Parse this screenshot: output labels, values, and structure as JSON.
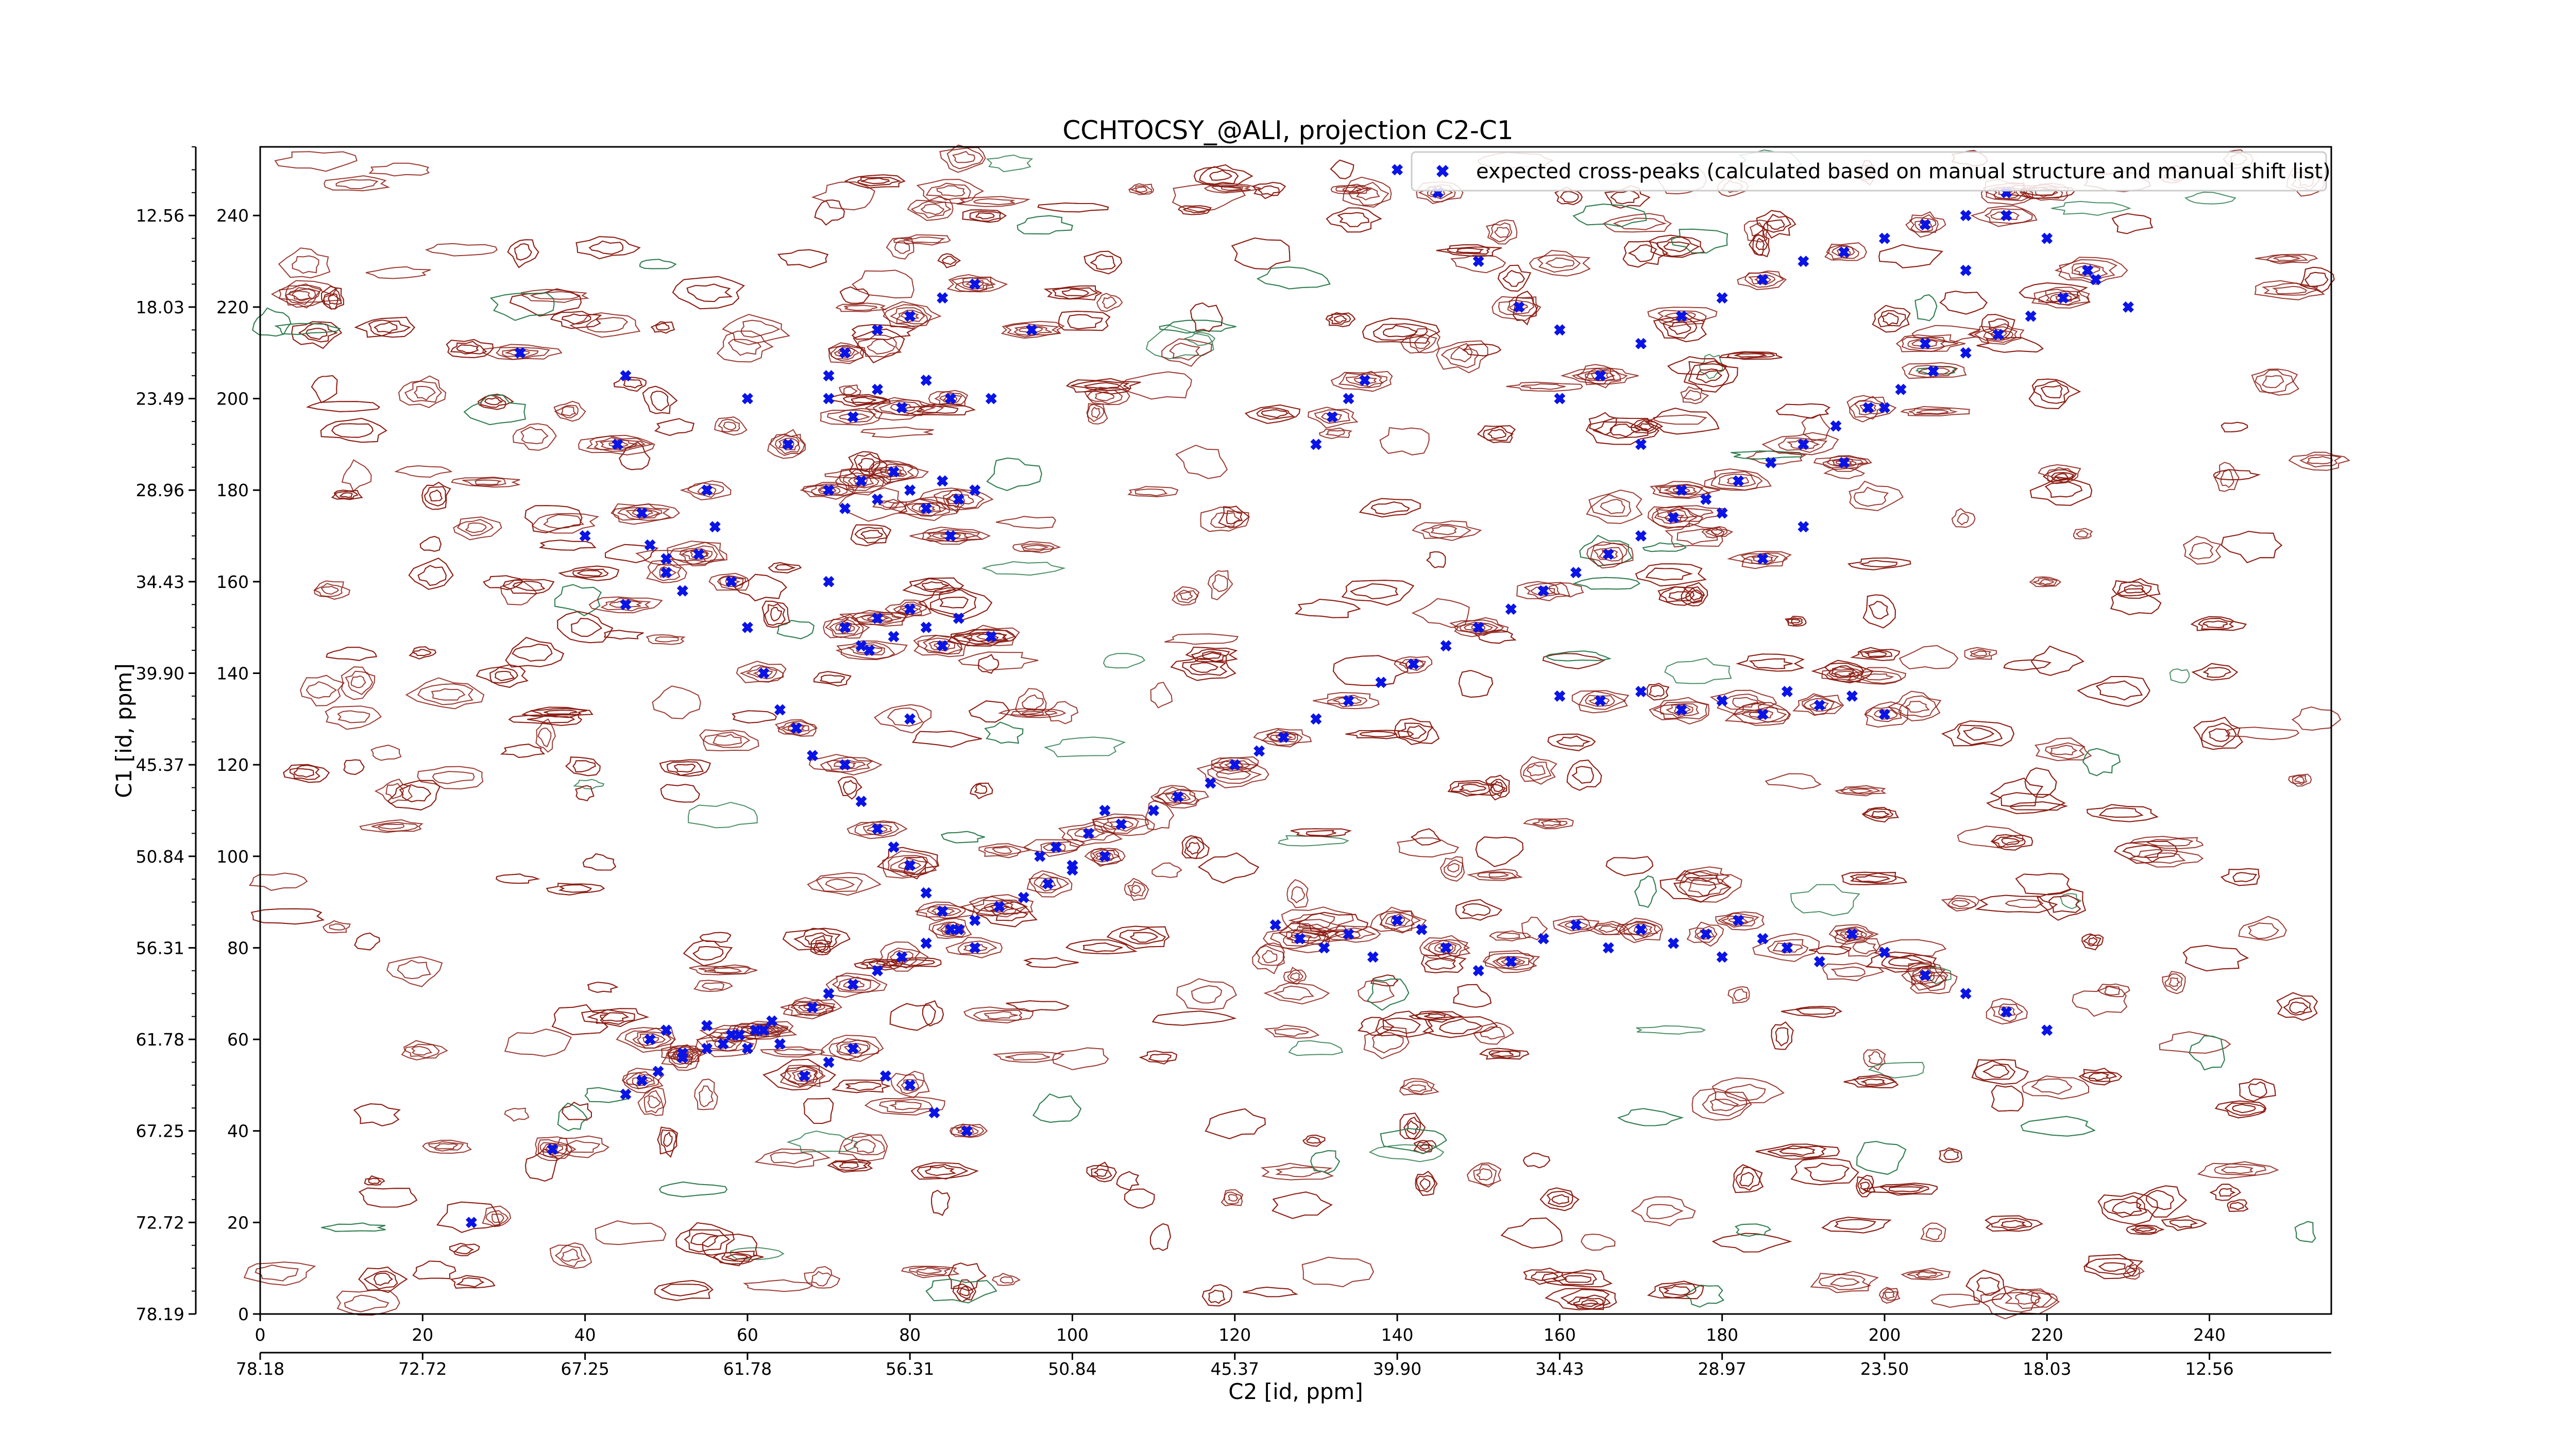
{
  "chart_data": {
    "type": "scatter",
    "title": "CCHTOCSY_@ALI, projection C2-C1",
    "xlabel": "C2 [id, ppm]",
    "ylabel": "C1 [id, ppm]",
    "xlim": [
      0,
      255
    ],
    "ylim": [
      0,
      255
    ],
    "x_ticks": [
      0,
      20,
      40,
      60,
      80,
      100,
      120,
      140,
      160,
      180,
      200,
      220,
      240
    ],
    "x_ticks_ppm": [
      "78.18",
      "72.72",
      "67.25",
      "61.78",
      "56.31",
      "50.84",
      "45.37",
      "39.90",
      "34.43",
      "28.97",
      "23.50",
      "18.03",
      "12.56"
    ],
    "y_ticks": [
      0,
      20,
      40,
      60,
      80,
      100,
      120,
      140,
      160,
      180,
      200,
      220,
      240
    ],
    "y_ticks_ppm": [
      "78.19",
      "72.72",
      "67.25",
      "61.78",
      "56.31",
      "50.84",
      "45.37",
      "39.90",
      "34.43",
      "28.96",
      "23.49",
      "18.03",
      "12.56"
    ],
    "legend_position": "top-right",
    "grid": false,
    "contour_colors": {
      "positive": "#8b1a10",
      "negative": "#2e7d4f"
    },
    "series": [
      {
        "name": "expected cross-peaks (calculated based on manual structure and manual shift list)",
        "color": "#0a14e6",
        "marker": "x-filled",
        "x": [
          36,
          45,
          47,
          49,
          52,
          55,
          57,
          59,
          61,
          63,
          68,
          70,
          73,
          76,
          79,
          82,
          85,
          88,
          91,
          94,
          97,
          100,
          104,
          110,
          113,
          117,
          120,
          123,
          126,
          130,
          134,
          138,
          142,
          146,
          150,
          154,
          158,
          162,
          166,
          170,
          174,
          178,
          182,
          186,
          190,
          194,
          198,
          202,
          206,
          210,
          214,
          218,
          222,
          226,
          48,
          50,
          52,
          55,
          58,
          60,
          62,
          64,
          67,
          70,
          73,
          77,
          80,
          83,
          87,
          125,
          128,
          131,
          134,
          137,
          140,
          143,
          146,
          150,
          154,
          158,
          162,
          166,
          170,
          174,
          178,
          180,
          182,
          185,
          188,
          192,
          196,
          200,
          205,
          210,
          215,
          220,
          70,
          72,
          74,
          76,
          78,
          80,
          82,
          84,
          86,
          88,
          72,
          74,
          76,
          78,
          80,
          82,
          84,
          86,
          90,
          70,
          73,
          76,
          79,
          82,
          85,
          130,
          132,
          134,
          136,
          160,
          165,
          170,
          175,
          180,
          185,
          188,
          192,
          196,
          200,
          96,
          98,
          100,
          102,
          104,
          106,
          70,
          72,
          76,
          80,
          84,
          88,
          160,
          165,
          170,
          175,
          180,
          185,
          190,
          195,
          200,
          205,
          210,
          215,
          26,
          32,
          40,
          45,
          50,
          55,
          60,
          65,
          70,
          75,
          80,
          85,
          90,
          95,
          140,
          145,
          150,
          155,
          160,
          165,
          170,
          175,
          180,
          185,
          190,
          195,
          200,
          205,
          210,
          215,
          220,
          225,
          230,
          44,
          45,
          47,
          48,
          50,
          52,
          54,
          56,
          58,
          60,
          62,
          64,
          66,
          68,
          72,
          74,
          76,
          78,
          80,
          82,
          84,
          86,
          88
        ],
        "y": [
          36,
          48,
          51,
          53,
          56,
          58,
          59,
          61,
          62,
          64,
          67,
          70,
          72,
          75,
          78,
          81,
          84,
          86,
          89,
          91,
          94,
          97,
          100,
          110,
          113,
          116,
          120,
          123,
          126,
          130,
          134,
          138,
          142,
          146,
          150,
          154,
          158,
          162,
          166,
          170,
          174,
          178,
          182,
          186,
          190,
          194,
          198,
          202,
          206,
          210,
          214,
          218,
          222,
          226,
          60,
          62,
          57,
          63,
          61,
          58,
          62,
          59,
          52,
          55,
          58,
          52,
          50,
          44,
          40,
          85,
          82,
          80,
          83,
          78,
          86,
          84,
          80,
          75,
          77,
          82,
          85,
          80,
          84,
          81,
          83,
          78,
          86,
          82,
          80,
          77,
          83,
          79,
          74,
          70,
          66,
          62,
          180,
          176,
          182,
          178,
          184,
          180,
          176,
          182,
          178,
          180,
          150,
          146,
          152,
          148,
          154,
          150,
          146,
          152,
          148,
          200,
          196,
          202,
          198,
          204,
          200,
          190,
          196,
          200,
          204,
          135,
          134,
          136,
          132,
          134,
          131,
          136,
          133,
          135,
          131,
          100,
          102,
          98,
          105,
          110,
          107,
          205,
          210,
          215,
          218,
          222,
          225,
          200,
          205,
          212,
          218,
          222,
          226,
          230,
          232,
          235,
          238,
          240,
          245,
          20,
          210,
          170,
          155,
          165,
          180,
          200,
          190,
          160,
          145,
          130,
          170,
          200,
          215,
          250,
          245,
          230,
          220,
          215,
          205,
          190,
          180,
          175,
          165,
          172,
          186,
          198,
          212,
          228,
          240,
          235,
          228,
          220,
          190,
          205,
          175,
          168,
          162,
          158,
          166,
          172,
          160,
          150,
          140,
          132,
          128,
          122,
          120,
          112,
          106,
          102,
          98,
          92,
          88,
          84,
          80
        ]
      }
    ]
  }
}
